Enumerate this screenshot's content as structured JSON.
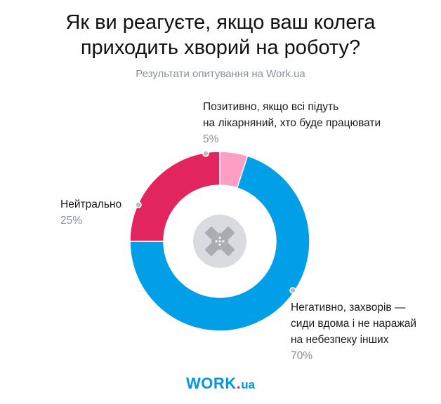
{
  "chart_data": {
    "type": "pie",
    "title_lines": [
      "Як ви реагуєте, якщо ваш колега",
      "приходить хворий на роботу?"
    ],
    "subtitle": "Результати опитування на Work.ua",
    "slices": [
      {
        "label_lines": [
          "Позитивно, якщо всі підуть",
          "на лікарняний, хто буде працювати"
        ],
        "value": 5,
        "value_label": "5%",
        "color": "#ff9ec5"
      },
      {
        "label_lines": [
          "Негативно, захворів —",
          "сиди вдома і не наражай",
          "на небезпеку інших"
        ],
        "value": 70,
        "value_label": "70%",
        "color": "#009fe8"
      },
      {
        "label_lines": [
          "Нейтрально"
        ],
        "value": 25,
        "value_label": "25%",
        "color": "#e2245f"
      }
    ],
    "center_icon": "bandage-icon",
    "center_icon_bg": "#d9dbde",
    "center_icon_color": "#a9acb0"
  },
  "brand": {
    "name": "WORK",
    "dot": ".",
    "tld": "ua"
  }
}
